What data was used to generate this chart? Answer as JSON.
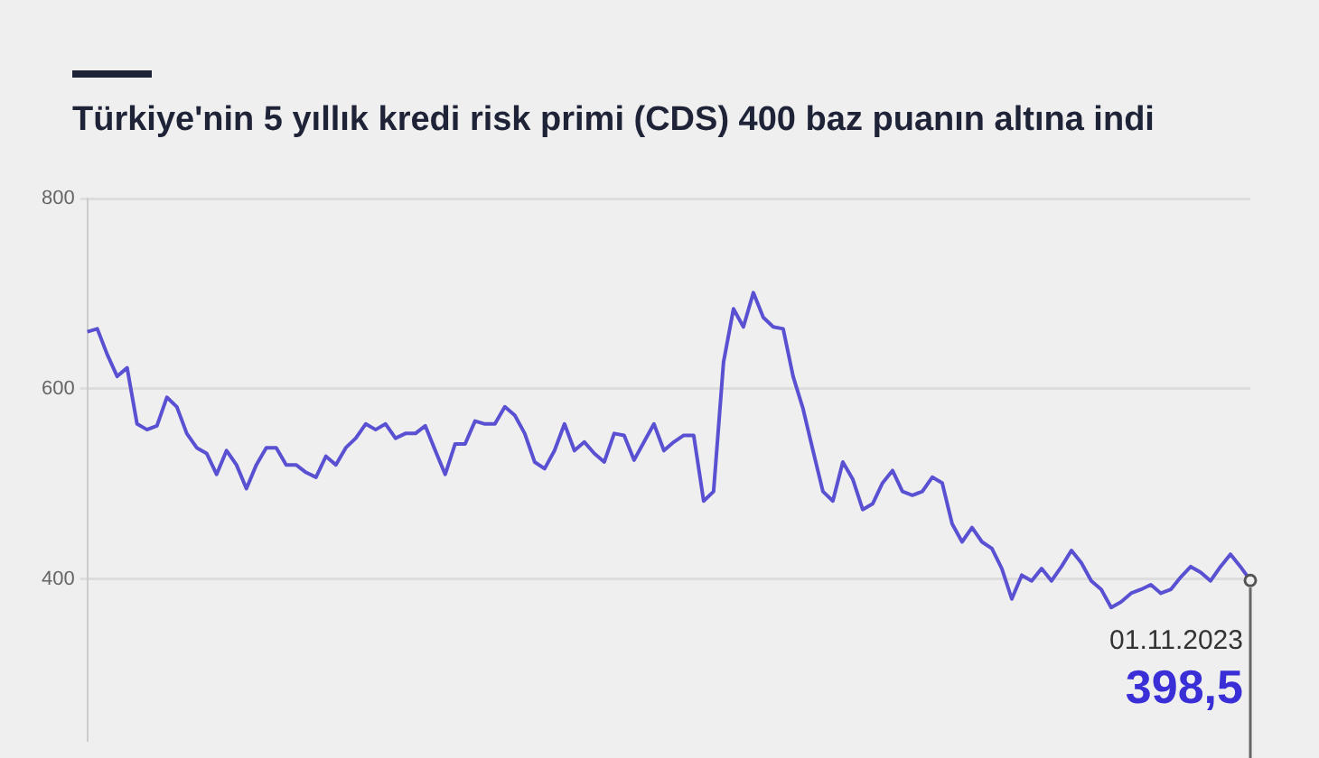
{
  "chart_data": {
    "type": "line",
    "title": "Türkiye'nin 5 yıllık kredi risk primi (CDS) 400 baz puanın altına indi",
    "categories": [
      null,
      null,
      null,
      null,
      null,
      null,
      null,
      null,
      null,
      null,
      null,
      null,
      null,
      null,
      null,
      null,
      null,
      null,
      null,
      null,
      null,
      null,
      null,
      null,
      null,
      null,
      null,
      null,
      null,
      null,
      null,
      null,
      null,
      null,
      null,
      null,
      null,
      null,
      null,
      null,
      null,
      null,
      null,
      null,
      null,
      null,
      null,
      null,
      null,
      null,
      null,
      null,
      null,
      null,
      null,
      null,
      null,
      null,
      null,
      null,
      null,
      null,
      null,
      null,
      null,
      null,
      null,
      null,
      null,
      null,
      null,
      null,
      null,
      null,
      null,
      null,
      null,
      null,
      null,
      null,
      null,
      null,
      null,
      null,
      null,
      null,
      null,
      null,
      null,
      null,
      null,
      null,
      null,
      null,
      null,
      null,
      null,
      null,
      null,
      null,
      null,
      null,
      null,
      null,
      null,
      null,
      null,
      null,
      null,
      null,
      null,
      null,
      null,
      null,
      null,
      null,
      null,
      null
    ],
    "series": [
      {
        "color": "#5a50d2",
        "values": [
          660,
          663,
          636,
          613,
          622,
          563,
          557,
          561,
          591,
          581,
          553,
          538,
          532,
          510,
          535,
          520,
          495,
          520,
          538,
          538,
          520,
          520,
          512,
          507,
          529,
          520,
          538,
          548,
          563,
          557,
          563,
          548,
          553,
          553,
          561,
          535,
          510,
          542,
          542,
          566,
          563,
          563,
          581,
          572,
          553,
          523,
          516,
          535,
          563,
          535,
          544,
          532,
          523,
          553,
          551,
          525,
          544,
          563,
          535,
          544,
          551,
          551,
          482,
          492,
          628,
          684,
          665,
          701,
          675,
          665,
          663,
          613,
          579,
          535,
          492,
          482,
          523,
          505,
          473,
          479,
          501,
          514,
          492,
          488,
          492,
          507,
          501,
          458,
          439,
          454,
          439,
          432,
          411,
          379,
          404,
          398,
          411,
          398,
          413,
          430,
          417,
          398,
          389,
          370,
          376,
          385,
          389,
          394,
          385,
          389,
          402,
          413,
          407,
          398,
          413,
          426,
          413,
          398.5
        ],
        "value_labels": [
          null,
          null,
          null,
          null,
          null,
          null,
          null,
          null,
          null,
          null,
          null,
          null,
          null,
          null,
          null,
          null,
          null,
          null,
          null,
          null,
          null,
          null,
          null,
          null,
          null,
          null,
          null,
          null,
          null,
          null,
          null,
          null,
          null,
          null,
          null,
          null,
          null,
          null,
          null,
          null,
          null,
          null,
          null,
          null,
          null,
          null,
          null,
          null,
          null,
          null,
          null,
          null,
          null,
          null,
          null,
          null,
          null,
          null,
          null,
          null,
          null,
          null,
          null,
          null,
          null,
          null,
          null,
          null,
          null,
          null,
          null,
          null,
          null,
          null,
          null,
          null,
          null,
          null,
          null,
          null,
          null,
          null,
          null,
          null,
          null,
          null,
          null,
          null,
          null,
          null,
          null,
          null,
          null,
          null,
          null,
          null,
          null,
          null,
          null,
          null,
          null,
          null,
          null,
          null,
          null,
          null,
          null,
          null,
          null,
          null,
          null,
          null,
          null,
          null,
          null,
          null,
          null,
          "398,5"
        ]
      }
    ],
    "annotations": [
      "01.11.2023"
    ],
    "ylim": [
      230,
      800
    ],
    "yticks": [
      400,
      600,
      800
    ],
    "grid": "y"
  }
}
